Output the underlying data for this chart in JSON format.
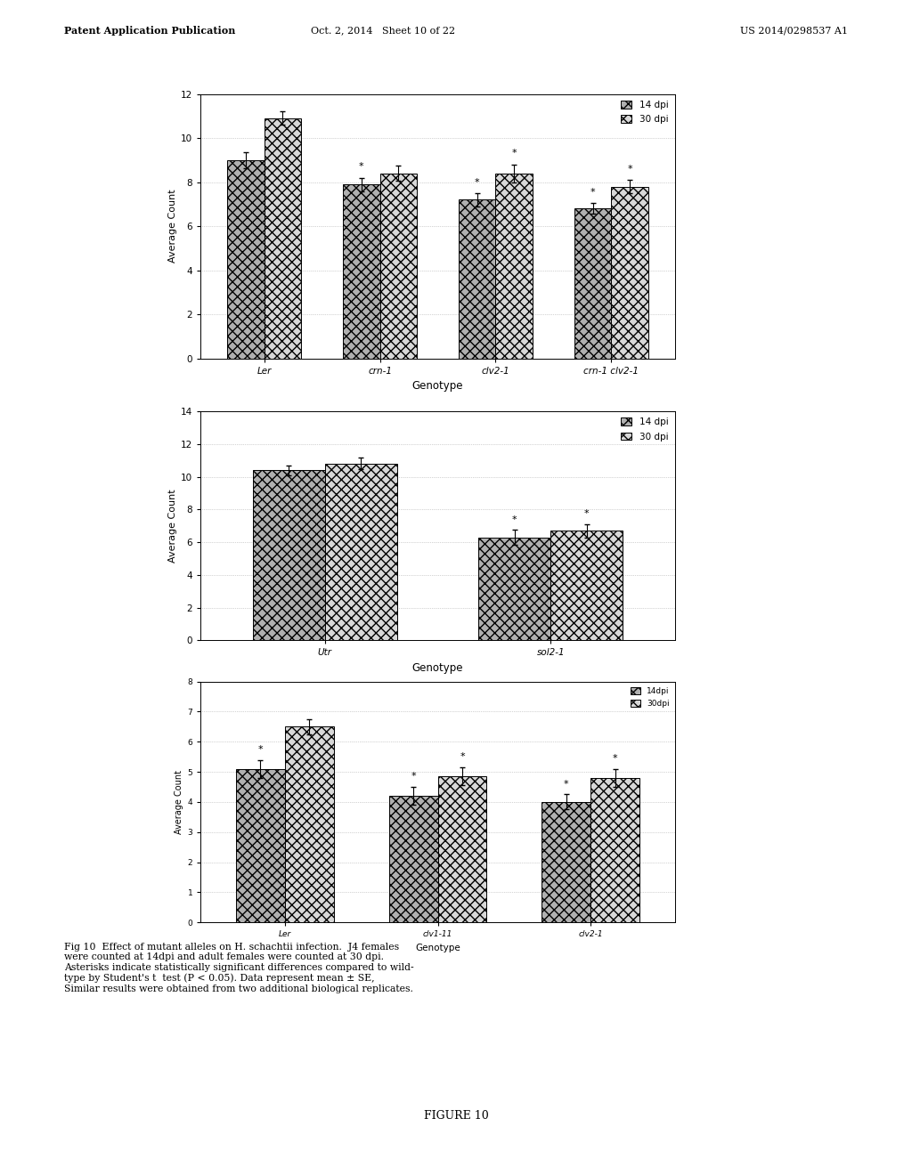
{
  "chart1": {
    "categories": [
      "Ler",
      "crn-1",
      "clv2-1",
      "crn-1 clv2-1"
    ],
    "bar14_values": [
      9.0,
      7.9,
      7.2,
      6.8
    ],
    "bar14_errors": [
      0.35,
      0.3,
      0.3,
      0.25
    ],
    "bar30_values": [
      10.9,
      8.4,
      8.4,
      7.8
    ],
    "bar30_errors": [
      0.3,
      0.35,
      0.4,
      0.3
    ],
    "ylabel": "Average Count",
    "xlabel": "Genotype",
    "ylim": [
      0,
      12
    ],
    "yticks": [
      0,
      2,
      4,
      6,
      8,
      10,
      12
    ],
    "asterisk14": [
      false,
      true,
      true,
      true
    ],
    "asterisk30": [
      false,
      false,
      true,
      true
    ],
    "legend14": "14 dpi",
    "legend30": "30 dpi"
  },
  "chart2": {
    "categories": [
      "Utr",
      "sol2-1"
    ],
    "bar14_values": [
      10.4,
      6.3
    ],
    "bar14_errors": [
      0.3,
      0.45
    ],
    "bar30_values": [
      10.8,
      6.7
    ],
    "bar30_errors": [
      0.35,
      0.4
    ],
    "ylabel": "Average Count",
    "xlabel": "Genotype",
    "ylim": [
      0,
      14
    ],
    "yticks": [
      0,
      2,
      4,
      6,
      8,
      10,
      12,
      14
    ],
    "asterisk14": [
      false,
      true
    ],
    "asterisk30": [
      false,
      true
    ],
    "legend14": "14 dpi",
    "legend30": "30 dpi"
  },
  "chart3": {
    "categories": [
      "Ler",
      "clv1-11",
      "clv2-1"
    ],
    "bar14_values": [
      5.1,
      4.2,
      4.0
    ],
    "bar14_errors": [
      0.3,
      0.3,
      0.25
    ],
    "bar30_values": [
      6.5,
      4.85,
      4.8
    ],
    "bar30_errors": [
      0.25,
      0.3,
      0.3
    ],
    "ylabel": "Average Count",
    "xlabel": "Genotype",
    "ylim": [
      0,
      8
    ],
    "yticks": [
      0,
      1,
      2,
      3,
      4,
      5,
      6,
      7,
      8
    ],
    "asterisk14": [
      true,
      true,
      true
    ],
    "asterisk30": [
      false,
      true,
      true
    ],
    "legend14": "14dpi",
    "legend30": "30dpi"
  },
  "header_left": "Patent Application Publication",
  "header_mid": "Oct. 2, 2014   Sheet 10 of 22",
  "header_right": "US 2014/0298537 A1",
  "figure_caption_bold": "Fig 10",
  "figure_caption_normal": "  Effect of mutant alleles on ",
  "figure_caption_italic": "H. schachtii",
  "figure_caption_rest": " infection.  J4 females\nwere counted at 14dpi and adult females were counted at 30 dpi.\nAsterisks indicate statistically significant differences compared to wild-\ntype by Student's ",
  "figure_caption_t": "t",
  "figure_caption_end": "  test (P < 0.05). Data represent mean ± SE,\nSimilar results were obtained from two additional biological replicates.",
  "figure_label": "FIGURE 10",
  "bar_hatch_14": "xxx",
  "bar_hatch_30": "xxx",
  "bar_color_14": "#b0b0b0",
  "bar_color_30": "#d8d8d8",
  "background_color": "#ffffff",
  "grid_color": "#aaaaaa",
  "grid_style": ":"
}
